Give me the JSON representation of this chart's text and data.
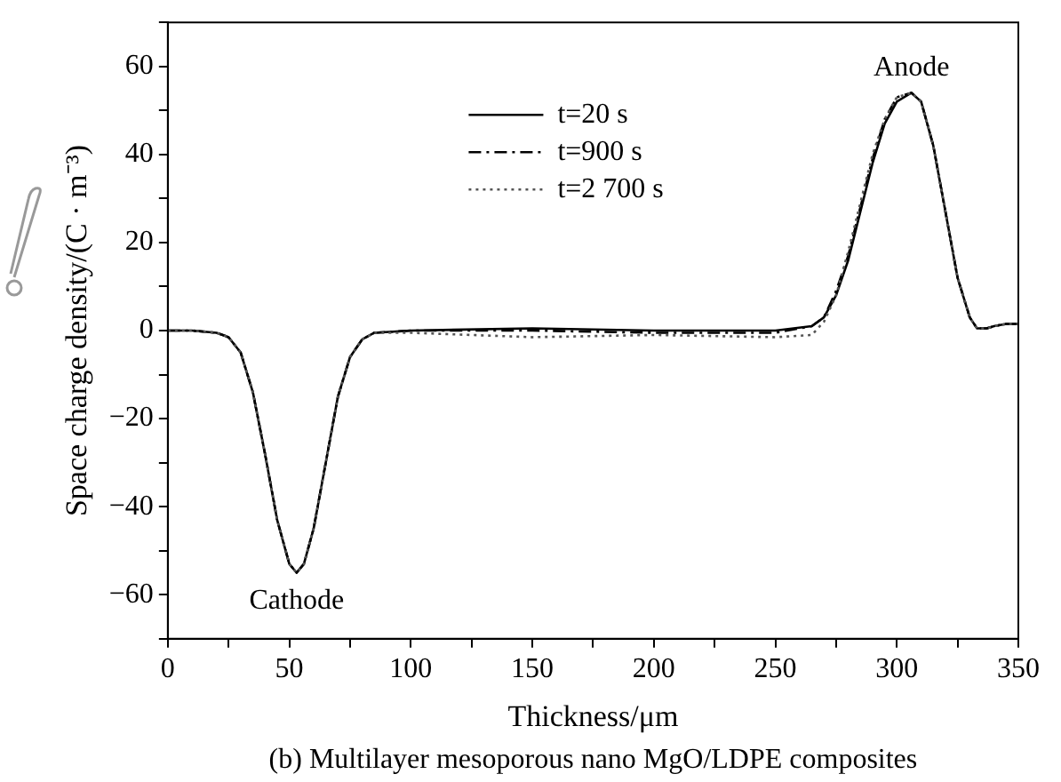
{
  "chart_data": {
    "type": "line",
    "xlabel": "Thickness/μm",
    "ylabel": "Space charge density/(C · m⁻³)",
    "xlim": [
      0,
      350
    ],
    "xticks": [
      0,
      {
        "value": 25,
        "label": null
      },
      50,
      {
        "value": 75,
        "label": null
      },
      100,
      {
        "value": 125,
        "label": null
      },
      150,
      {
        "value": 175,
        "label": null
      },
      200,
      {
        "value": 225,
        "label": null
      },
      250,
      {
        "value": 275,
        "label": null
      },
      300,
      {
        "value": 325,
        "label": null
      },
      350
    ],
    "ylim": [
      -70,
      70
    ],
    "yticks": [
      {
        "value": -70,
        "label": null
      },
      -60,
      {
        "value": -50,
        "label": null
      },
      -40,
      {
        "value": -30,
        "label": null
      },
      -20,
      {
        "value": -10,
        "label": null
      },
      0,
      {
        "value": 10,
        "label": null
      },
      20,
      {
        "value": 30,
        "label": null
      },
      40,
      {
        "value": 50,
        "label": null
      },
      60,
      {
        "value": 70,
        "label": null
      }
    ],
    "x": [
      0,
      10,
      20,
      25,
      30,
      35,
      40,
      45,
      50,
      53,
      56,
      60,
      65,
      70,
      75,
      80,
      85,
      100,
      150,
      200,
      250,
      265,
      270,
      275,
      280,
      285,
      290,
      295,
      300,
      306,
      310,
      315,
      320,
      325,
      330,
      333,
      337,
      340,
      345,
      350
    ],
    "series": [
      {
        "name": "t=20 s",
        "color": "#000000",
        "line_style": "solid",
        "values": [
          0,
          0,
          -0.5,
          -1.5,
          -5,
          -14,
          -28,
          -43,
          -53,
          -55,
          -53,
          -45,
          -30,
          -15,
          -6,
          -2,
          -0.5,
          0,
          0.5,
          0,
          0,
          1,
          3,
          8,
          16,
          27,
          38,
          47,
          52,
          54,
          52,
          42,
          27,
          12,
          3,
          0.5,
          0.5,
          1,
          1.5,
          1.5
        ]
      },
      {
        "name": "t=900 s",
        "color": "#000000",
        "line_style": "dashed",
        "values": [
          0,
          0,
          -0.5,
          -1.5,
          -5,
          -14,
          -28,
          -43,
          -53,
          -55,
          -53,
          -45,
          -30,
          -15,
          -6,
          -2,
          -0.5,
          0,
          0,
          -0.5,
          -0.5,
          1,
          3,
          9,
          17,
          28,
          39,
          48,
          53,
          54,
          52,
          42,
          27,
          12,
          3,
          0.5,
          0.5,
          1,
          1.5,
          1.5
        ]
      },
      {
        "name": "t=2 700 s",
        "color": "#555555",
        "line_style": "dotted",
        "values": [
          0,
          0,
          -0.5,
          -1.5,
          -5,
          -14,
          -28,
          -43,
          -53,
          -55,
          -53,
          -45,
          -30,
          -15,
          -6,
          -2,
          -0.5,
          -0.5,
          -1.5,
          -1,
          -1.5,
          -1,
          2,
          8,
          18,
          29,
          40,
          48,
          53,
          54,
          52,
          42,
          27,
          12,
          3,
          0.5,
          0.5,
          1,
          1.5,
          1.5
        ]
      }
    ],
    "legend": "top",
    "grid": false,
    "marker": "none",
    "annotations": [
      {
        "text": "Cathode",
        "x": 53,
        "y": -55
      },
      {
        "text": "Anode",
        "x": 306,
        "y": 54
      },
      "(b) Multilayer mesoporous nano MgO/LDPE composites"
    ]
  }
}
